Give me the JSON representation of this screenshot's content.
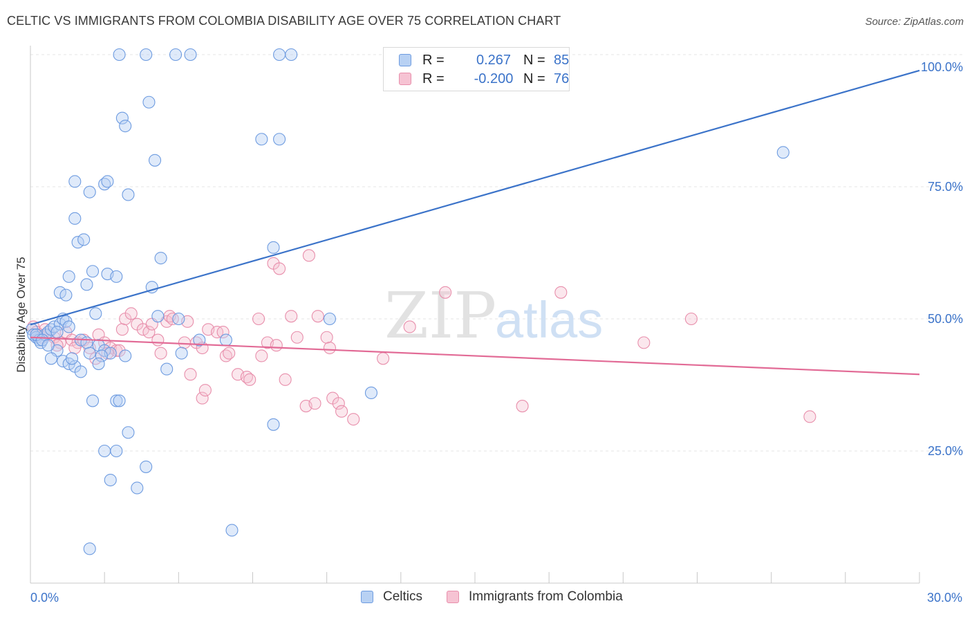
{
  "title": "CELTIC VS IMMIGRANTS FROM COLOMBIA DISABILITY AGE OVER 75 CORRELATION CHART",
  "source": "Source: ZipAtlas.com",
  "watermark": {
    "zip": "ZIP",
    "atlas": "atlas"
  },
  "legend": {
    "rows": [
      {
        "r_label": "R =",
        "r_value": "0.267",
        "n_label": "N =",
        "n_value": "85"
      },
      {
        "r_label": "R =",
        "r_value": "-0.200",
        "n_label": "N =",
        "n_value": "76"
      }
    ]
  },
  "bottom_legend": [
    "Celtics",
    "Immigrants from Colombia"
  ],
  "colors": {
    "blue": "#3b73c9",
    "blue_fill": "#b8d1f3",
    "pink": "#e26b96",
    "pink_fill": "#f6c3d3",
    "tick_text": "#3b73c9"
  },
  "chart_data": {
    "type": "scatter",
    "title": "CELTIC VS IMMIGRANTS FROM COLOMBIA DISABILITY AGE OVER 75 CORRELATION CHART",
    "xlabel": "",
    "ylabel": "Disability Age Over 75",
    "xlim": [
      0,
      30
    ],
    "ylim": [
      0,
      100
    ],
    "x_tick_labels": [
      "0.0%",
      "30.0%"
    ],
    "y_ticks": [
      25,
      50,
      75,
      100
    ],
    "y_tick_labels": [
      "25.0%",
      "50.0%",
      "75.0%",
      "100.0%"
    ],
    "grid": true,
    "series": [
      {
        "name": "Celtics",
        "r": 0.267,
        "n": 85,
        "trend": {
          "x": [
            0,
            30
          ],
          "y": [
            48.9,
            97.0
          ]
        },
        "points": [
          [
            3.0,
            100
          ],
          [
            3.9,
            100
          ],
          [
            4.9,
            100
          ],
          [
            5.4,
            100
          ],
          [
            8.4,
            100
          ],
          [
            8.8,
            100
          ],
          [
            3.1,
            88
          ],
          [
            3.2,
            86.5
          ],
          [
            4.0,
            91
          ],
          [
            4.2,
            80
          ],
          [
            7.8,
            84
          ],
          [
            8.4,
            84
          ],
          [
            1.5,
            76
          ],
          [
            1.5,
            69
          ],
          [
            1.6,
            64.5
          ],
          [
            1.8,
            65
          ],
          [
            2.0,
            74
          ],
          [
            2.5,
            75.5
          ],
          [
            2.6,
            76
          ],
          [
            3.3,
            73.5
          ],
          [
            1.3,
            58
          ],
          [
            1.9,
            56.5
          ],
          [
            2.1,
            59
          ],
          [
            2.6,
            58.5
          ],
          [
            2.9,
            58
          ],
          [
            4.1,
            56
          ],
          [
            4.4,
            61.5
          ],
          [
            8.2,
            63.5
          ],
          [
            1.0,
            55
          ],
          [
            1.2,
            54.5
          ],
          [
            2.2,
            51
          ],
          [
            4.3,
            50.5
          ],
          [
            5.0,
            50
          ],
          [
            10.1,
            50
          ],
          [
            0.05,
            48
          ],
          [
            0.1,
            47
          ],
          [
            0.2,
            46.5
          ],
          [
            0.3,
            46
          ],
          [
            0.35,
            45.5
          ],
          [
            0.5,
            47
          ],
          [
            0.6,
            47.5
          ],
          [
            0.7,
            48
          ],
          [
            0.8,
            48.5
          ],
          [
            1.0,
            49
          ],
          [
            1.1,
            50
          ],
          [
            1.2,
            49.5
          ],
          [
            1.7,
            46
          ],
          [
            1.9,
            45.5
          ],
          [
            2.3,
            45
          ],
          [
            2.5,
            44
          ],
          [
            2.7,
            43.5
          ],
          [
            5.7,
            46
          ],
          [
            6.6,
            46
          ],
          [
            5.1,
            43.5
          ],
          [
            0.9,
            44
          ],
          [
            0.7,
            42.5
          ],
          [
            1.1,
            42
          ],
          [
            1.3,
            41.5
          ],
          [
            1.5,
            41
          ],
          [
            1.7,
            40
          ],
          [
            1.4,
            42.5
          ],
          [
            2.4,
            43
          ],
          [
            2.3,
            41.5
          ],
          [
            2.0,
            43.5
          ],
          [
            4.6,
            40.5
          ],
          [
            11.5,
            36
          ],
          [
            2.1,
            34.5
          ],
          [
            2.9,
            34.5
          ],
          [
            3.0,
            34.5
          ],
          [
            3.3,
            28.5
          ],
          [
            8.2,
            30
          ],
          [
            2.5,
            25
          ],
          [
            2.9,
            25
          ],
          [
            2.7,
            19.5
          ],
          [
            3.9,
            22
          ],
          [
            3.6,
            18
          ],
          [
            6.8,
            10
          ],
          [
            2.0,
            6.5
          ],
          [
            25.4,
            81.5
          ],
          [
            0.2,
            47
          ],
          [
            0.4,
            46
          ],
          [
            0.9,
            47.5
          ],
          [
            1.3,
            48.5
          ],
          [
            3.2,
            43
          ],
          [
            0.6,
            45
          ]
        ]
      },
      {
        "name": "Immigrants from Colombia",
        "r": -0.2,
        "n": 76,
        "trend": {
          "x": [
            0,
            30
          ],
          "y": [
            46.5,
            39.5
          ]
        },
        "points": [
          [
            0.1,
            48.5
          ],
          [
            0.2,
            47.5
          ],
          [
            0.3,
            47
          ],
          [
            0.4,
            46.5
          ],
          [
            0.5,
            48
          ],
          [
            0.6,
            47
          ],
          [
            0.8,
            46.5
          ],
          [
            1.0,
            45.5
          ],
          [
            1.2,
            47.5
          ],
          [
            1.4,
            46
          ],
          [
            1.6,
            45.5
          ],
          [
            1.8,
            46
          ],
          [
            2.0,
            44.5
          ],
          [
            2.3,
            47
          ],
          [
            2.5,
            45.5
          ],
          [
            2.7,
            44.5
          ],
          [
            2.9,
            44
          ],
          [
            3.1,
            48
          ],
          [
            3.2,
            50
          ],
          [
            3.4,
            51
          ],
          [
            3.6,
            49
          ],
          [
            3.8,
            48
          ],
          [
            4.0,
            47.5
          ],
          [
            4.1,
            49
          ],
          [
            4.3,
            46
          ],
          [
            4.4,
            43.5
          ],
          [
            4.6,
            49.5
          ],
          [
            4.7,
            50.5
          ],
          [
            4.8,
            50
          ],
          [
            5.2,
            45.5
          ],
          [
            5.3,
            49.5
          ],
          [
            5.6,
            45.5
          ],
          [
            5.8,
            44.5
          ],
          [
            5.4,
            39.5
          ],
          [
            5.8,
            35
          ],
          [
            5.9,
            36.5
          ],
          [
            6.0,
            48
          ],
          [
            6.3,
            47.5
          ],
          [
            6.5,
            47.5
          ],
          [
            6.6,
            43
          ],
          [
            6.7,
            43.5
          ],
          [
            7.0,
            39.5
          ],
          [
            7.3,
            39
          ],
          [
            7.4,
            38.5
          ],
          [
            7.7,
            50
          ],
          [
            7.8,
            43
          ],
          [
            8.0,
            45.5
          ],
          [
            8.3,
            45
          ],
          [
            8.2,
            60.5
          ],
          [
            8.4,
            59.5
          ],
          [
            8.6,
            38.5
          ],
          [
            8.8,
            50.5
          ],
          [
            9.0,
            46.5
          ],
          [
            9.3,
            33.5
          ],
          [
            9.6,
            34
          ],
          [
            9.4,
            62
          ],
          [
            9.7,
            50.5
          ],
          [
            10.0,
            46.5
          ],
          [
            10.1,
            44.5
          ],
          [
            10.2,
            35
          ],
          [
            10.4,
            34
          ],
          [
            10.5,
            32.5
          ],
          [
            10.9,
            31
          ],
          [
            11.9,
            42.5
          ],
          [
            12.8,
            48.5
          ],
          [
            14.0,
            55
          ],
          [
            16.6,
            33.5
          ],
          [
            17.9,
            55
          ],
          [
            20.7,
            45.5
          ],
          [
            22.3,
            50
          ],
          [
            26.3,
            31.5
          ],
          [
            2.2,
            42.5
          ],
          [
            3.0,
            44
          ],
          [
            1.5,
            44.5
          ],
          [
            0.9,
            45
          ],
          [
            2.6,
            43.5
          ]
        ]
      }
    ]
  }
}
